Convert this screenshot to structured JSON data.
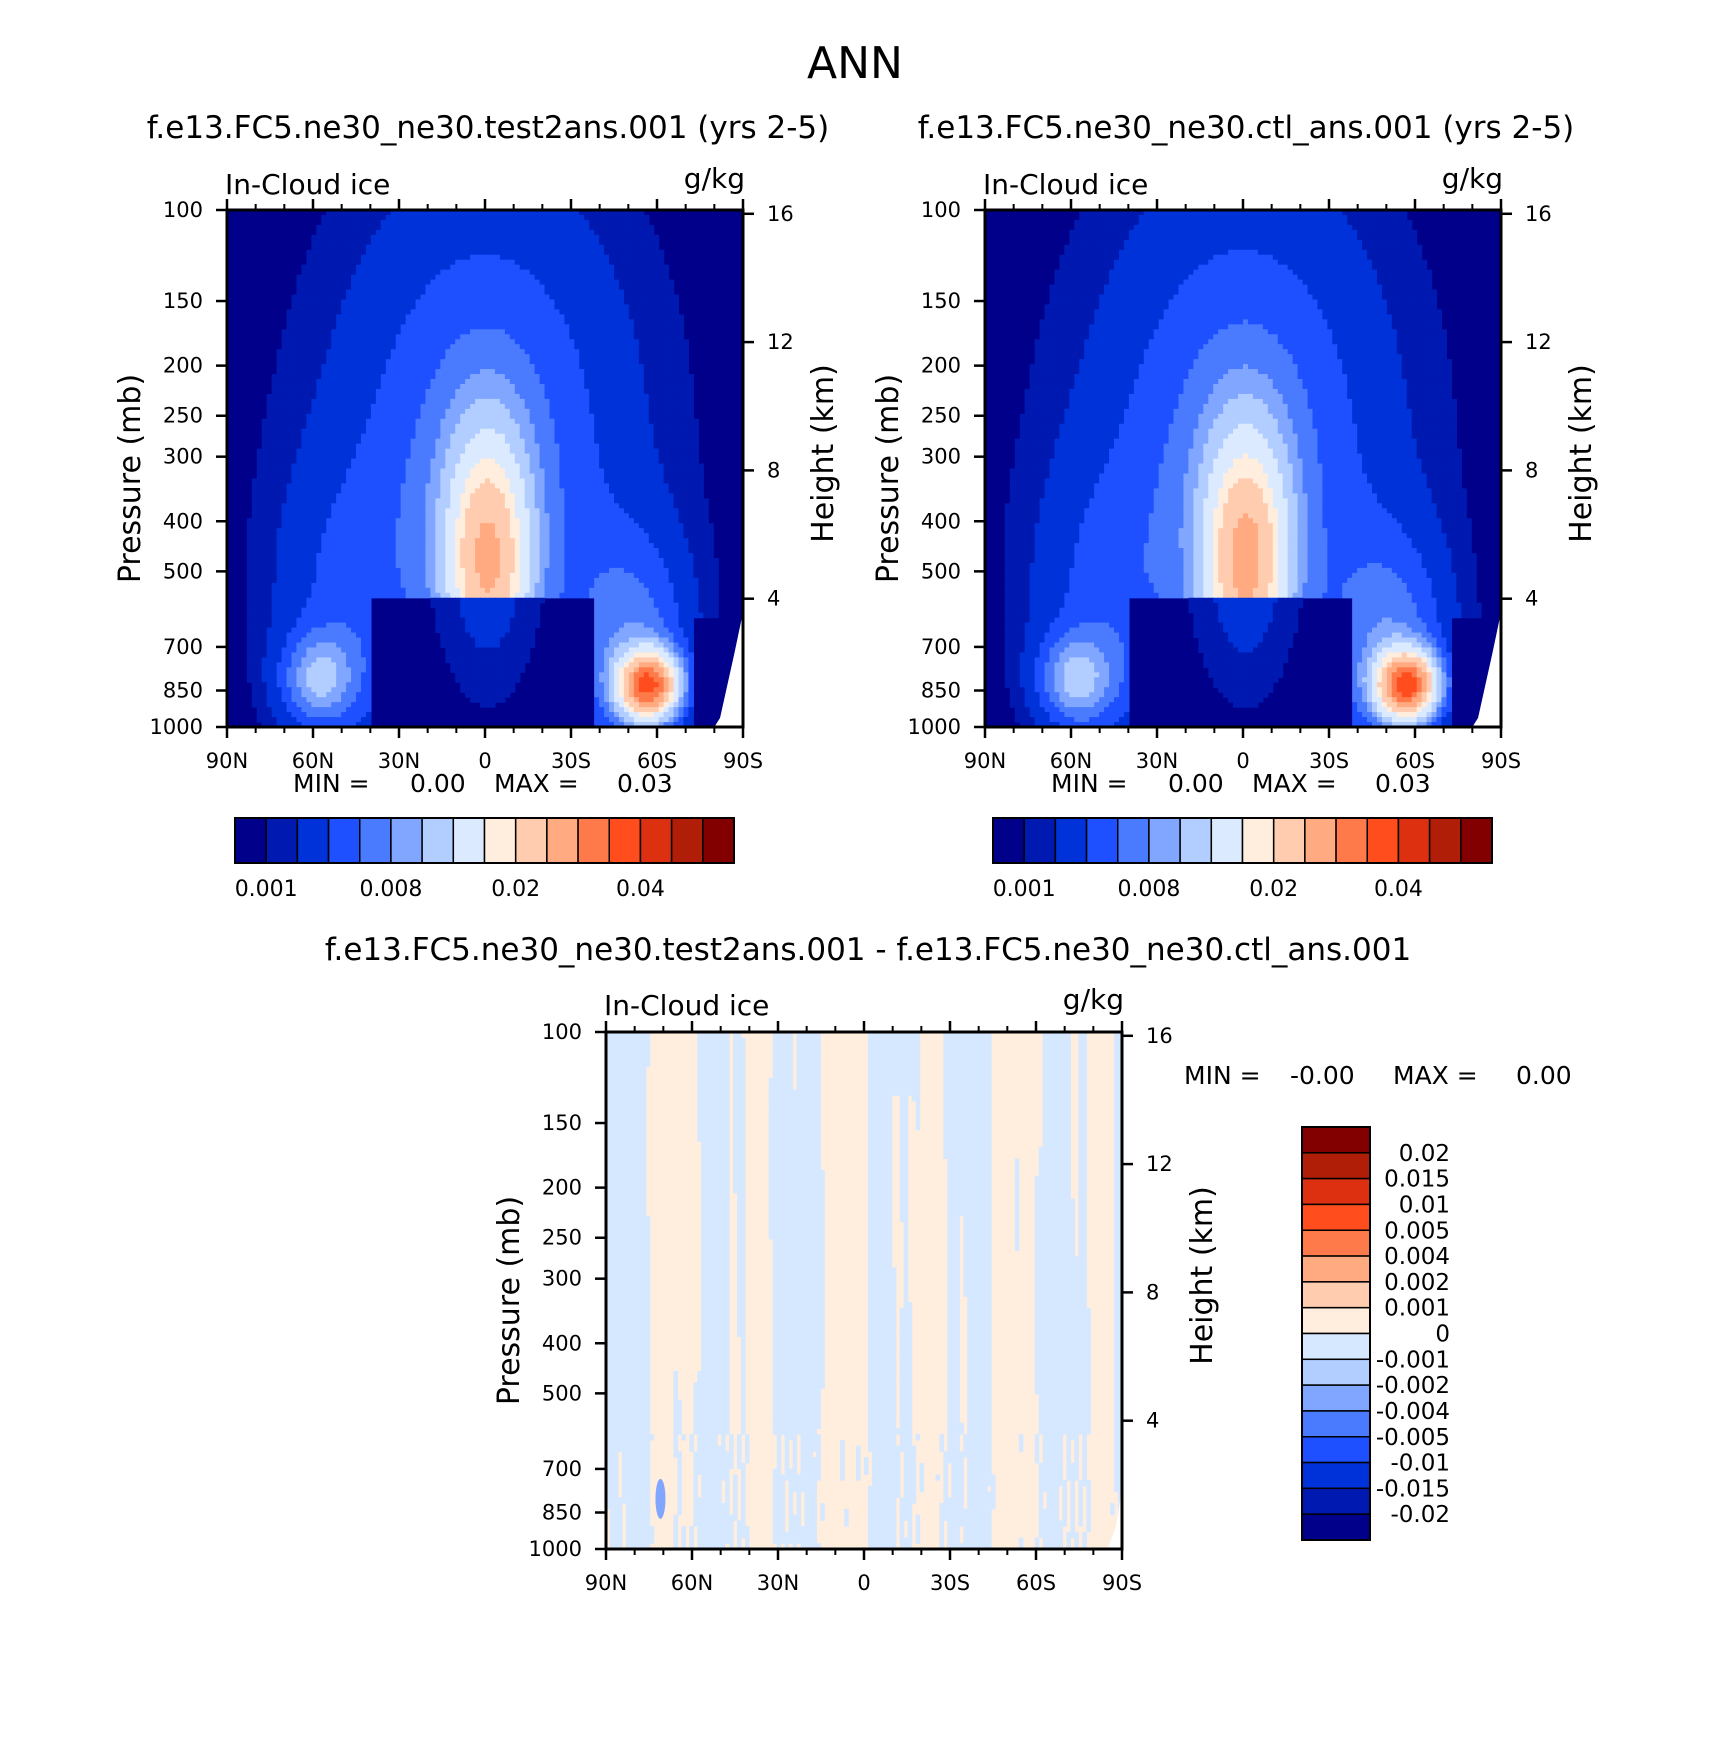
{
  "figure": {
    "season": "ANN",
    "colors": {
      "seq": [
        "#00008a",
        "#0019b0",
        "#0032d9",
        "#1e50ff",
        "#4a7bff",
        "#80a6ff",
        "#b2cdff",
        "#dbeaff",
        "#ffeedd",
        "#ffccb0",
        "#ffaa80",
        "#ff7a4a",
        "#ff4d1e",
        "#dc3010",
        "#b01e08",
        "#820000"
      ],
      "diff": [
        "#00008a",
        "#0019b0",
        "#0032d9",
        "#1e50ff",
        "#4a7bff",
        "#80a6ff",
        "#b2cdff",
        "#d6e8ff",
        "#ffeedd",
        "#ffccb0",
        "#ffaa80",
        "#ff7a4a",
        "#ff4d1e",
        "#dc3010",
        "#b01e08",
        "#820000"
      ]
    }
  },
  "panels": [
    {
      "title": "f.e13.FC5.ne30_ne30.test2ans.001 (yrs 2-5)",
      "variable": "In-Cloud ice",
      "units": "g/kg",
      "min_label": "MIN =",
      "min_value": "0.00",
      "max_label": "MAX =",
      "max_value": "0.03"
    },
    {
      "title": "f.e13.FC5.ne30_ne30.ctl_ans.001 (yrs 2-5)",
      "variable": "In-Cloud ice",
      "units": "g/kg",
      "min_label": "MIN =",
      "min_value": "0.00",
      "max_label": "MAX =",
      "max_value": "0.03"
    },
    {
      "title": "f.e13.FC5.ne30_ne30.test2ans.001 - f.e13.FC5.ne30_ne30.ctl_ans.001",
      "variable": "In-Cloud ice",
      "units": "g/kg",
      "min_label": "MIN =",
      "min_value": "-0.00",
      "max_label": "MAX =",
      "max_value": "0.00"
    }
  ],
  "chart_data": [
    {
      "type": "heatmap",
      "title": "f.e13.FC5.ne30_ne30.test2ans.001 (yrs 2-5)",
      "xlabel": "",
      "ylabel": "Pressure (mb)",
      "y2label": "Height (km)",
      "x_ticks": [
        "90N",
        "60N",
        "30N",
        "0",
        "30S",
        "60S",
        "90S"
      ],
      "y_ticks": [
        "100",
        "150",
        "200",
        "250",
        "300",
        "400",
        "500",
        "700",
        "850",
        "1000"
      ],
      "y2_ticks": [
        "16",
        "12",
        "8",
        "4"
      ],
      "ylim": [
        1000,
        100
      ],
      "y_scale": "log",
      "colorbar_labels": [
        "0.001",
        "0.008",
        "0.02",
        "0.04"
      ],
      "colorbar_levels": 16,
      "features": [
        {
          "lat": 0,
          "p": 500,
          "value": 0.02
        },
        {
          "lat": -57,
          "p": 830,
          "value": 0.03
        },
        {
          "lat": 58,
          "p": 810,
          "value": 0.008
        }
      ]
    },
    {
      "type": "heatmap",
      "title": "f.e13.FC5.ne30_ne30.ctl_ans.001 (yrs 2-5)",
      "xlabel": "",
      "ylabel": "Pressure (mb)",
      "y2label": "Height (km)",
      "x_ticks": [
        "90N",
        "60N",
        "30N",
        "0",
        "30S",
        "60S",
        "90S"
      ],
      "y_ticks": [
        "100",
        "150",
        "200",
        "250",
        "300",
        "400",
        "500",
        "700",
        "850",
        "1000"
      ],
      "y2_ticks": [
        "16",
        "12",
        "8",
        "4"
      ],
      "ylim": [
        1000,
        100
      ],
      "y_scale": "log",
      "colorbar_labels": [
        "0.001",
        "0.008",
        "0.02",
        "0.04"
      ],
      "colorbar_levels": 16,
      "features": [
        {
          "lat": 0,
          "p": 500,
          "value": 0.02
        },
        {
          "lat": -57,
          "p": 830,
          "value": 0.03
        },
        {
          "lat": 58,
          "p": 810,
          "value": 0.008
        }
      ]
    },
    {
      "type": "heatmap",
      "title": "f.e13.FC5.ne30_ne30.test2ans.001 - f.e13.FC5.ne30_ne30.ctl_ans.001",
      "xlabel": "",
      "ylabel": "Pressure (mb)",
      "y2label": "Height (km)",
      "x_ticks": [
        "90N",
        "60N",
        "30N",
        "0",
        "30S",
        "60S",
        "90S"
      ],
      "y_ticks": [
        "100",
        "150",
        "200",
        "250",
        "300",
        "400",
        "500",
        "700",
        "850",
        "1000"
      ],
      "y2_ticks": [
        "16",
        "12",
        "8",
        "4"
      ],
      "ylim": [
        1000,
        100
      ],
      "y_scale": "log",
      "colorbar_labels": [
        "0.02",
        "0.015",
        "0.01",
        "0.005",
        "0.004",
        "0.002",
        "0.001",
        "0",
        "-0.001",
        "-0.002",
        "-0.004",
        "-0.005",
        "-0.01",
        "-0.015",
        "-0.02"
      ],
      "colorbar_levels": 16
    }
  ]
}
